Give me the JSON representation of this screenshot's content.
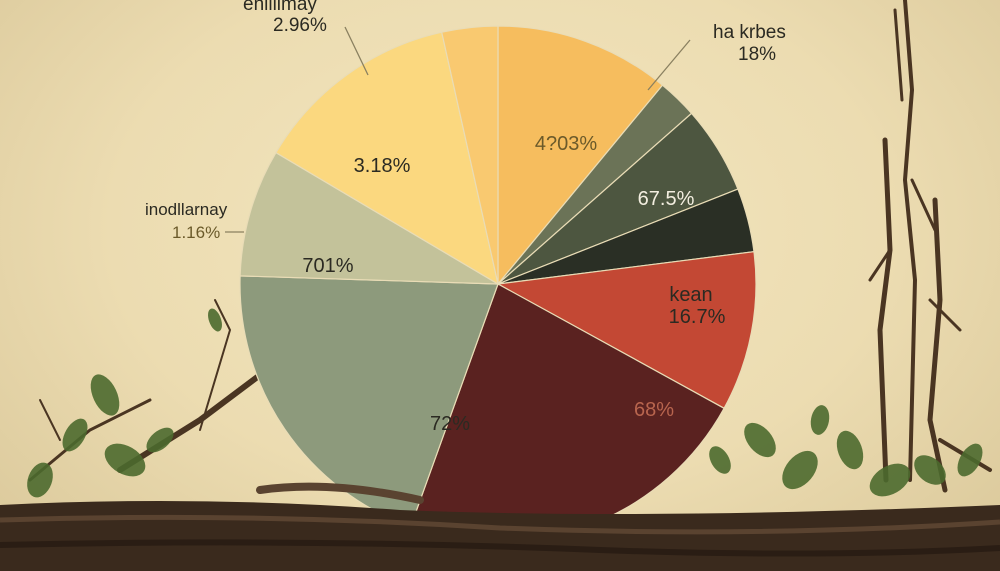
{
  "chart_data": {
    "type": "pie",
    "title": "",
    "slices": [
      {
        "label": "",
        "pct_text": "4?03%",
        "value": 11.0,
        "color": "#f6bd5e"
      },
      {
        "label": "",
        "pct_text": "",
        "value": 2.5,
        "color": "#6b7357"
      },
      {
        "label": "",
        "pct_text": "67.5%",
        "value": 5.5,
        "color": "#4d5640"
      },
      {
        "label": "",
        "pct_text": "",
        "value": 4.0,
        "color": "#2a2f25"
      },
      {
        "label": "kean",
        "pct_text": "16.7%",
        "value": 10.0,
        "color": "#c34834"
      },
      {
        "label": "",
        "pct_text": "68%",
        "value": 22.5,
        "color": "#5a2220"
      },
      {
        "label": "",
        "pct_text": "72%",
        "value": 20.0,
        "color": "#8d9a7c"
      },
      {
        "label": "",
        "pct_text": "701%",
        "value": 8.0,
        "color": "#c3c29a"
      },
      {
        "label": "",
        "pct_text": "3.18%",
        "value": 13.0,
        "color": "#fbd87f"
      },
      {
        "label": "",
        "pct_text": "",
        "value": 3.5,
        "color": "#f9c970"
      }
    ],
    "callouts": [
      {
        "name": "enllllmay",
        "value": "2.96%"
      },
      {
        "name": "ha krbes",
        "value": "18%"
      },
      {
        "name": "inodllarnay",
        "value": "1.16%"
      }
    ]
  },
  "colors": {
    "background": "#ecdcb1",
    "log": "#3a2a1d",
    "leaf": "#4c6a2e",
    "callout_line": "#8a8060"
  }
}
